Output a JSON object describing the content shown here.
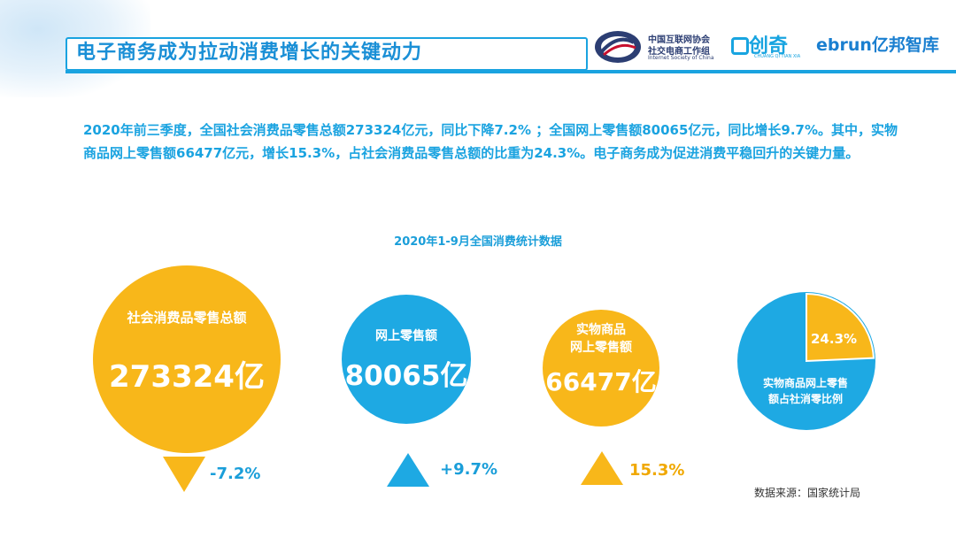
{
  "header": {
    "title": "电子商务成为拉动消费增长的关键动力",
    "logos": {
      "isc_line1": "中国互联网协会",
      "isc_line2": "社交电商工作组",
      "isc_line3": "Internet Society of China",
      "chuangqi": "创奇",
      "chuangqi_sub": "CHUANG QI TIAN XIA",
      "ebrun": "ebrun亿邦智库"
    }
  },
  "summary": "2020年前三季度，全国社会消费品零售总额273324亿元，同比下降7.2% ；全国网上零售额80065亿元，同比增长9.7%。其中，实物商品网上零售额66477亿元，增长15.3%，占社会消费品零售总额的比重为24.3%。电子商务成为促进消费平稳回升的关键力量。",
  "chart_data": {
    "type": "bubble",
    "title": "2020年1-9月全国消费统计数据",
    "items": [
      {
        "label": "社会消费品零售总额",
        "value_text": "273324亿",
        "value": 273324,
        "unit": "亿",
        "change_text": "-7.2%",
        "change": -7.2,
        "direction": "down",
        "color": "#f8b71a"
      },
      {
        "label": "网上零售额",
        "value_text": "80065亿",
        "value": 80065,
        "unit": "亿",
        "change_text": "+9.7%",
        "change": 9.7,
        "direction": "up",
        "color": "#1ea9e3"
      },
      {
        "label_line1": "实物商品",
        "label_line2": "网上零售额",
        "value_text": "66477亿",
        "value": 66477,
        "unit": "亿",
        "change_text": "15.3%",
        "change": 15.3,
        "direction": "up",
        "color": "#f8b71a"
      }
    ],
    "pie": {
      "share_text": "24.3%",
      "share": 24.3,
      "label_line1": "实物商品网上零售",
      "label_line2": "额占社消零比例",
      "colors": {
        "share": "#f8b71a",
        "rest": "#1ea9e3"
      }
    }
  },
  "source": "数据来源：国家统计局"
}
